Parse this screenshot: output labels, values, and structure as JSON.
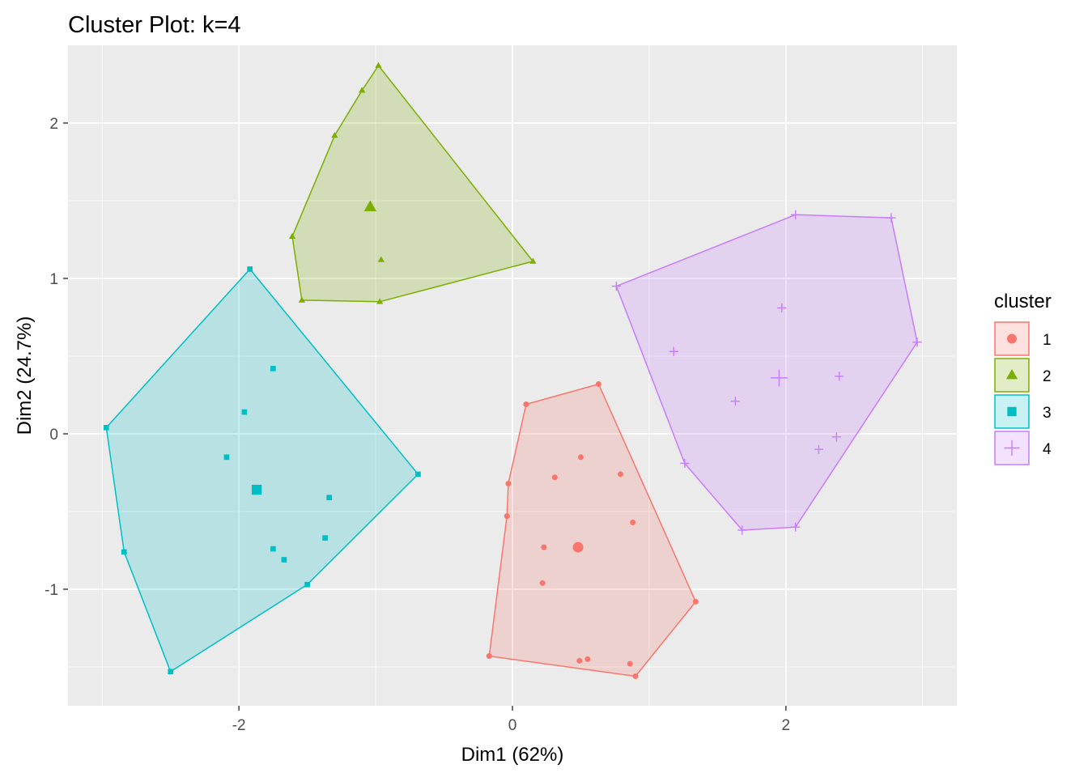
{
  "chart_data": {
    "type": "scatter",
    "title": "Cluster Plot: k=4",
    "xlabel": "Dim1 (62%)",
    "ylabel": "Dim2 (24.7%)",
    "xlim": [
      -3.25,
      3.25
    ],
    "ylim": [
      -1.75,
      2.5
    ],
    "x_ticks": [
      -2,
      0,
      2
    ],
    "y_ticks": [
      -1,
      0,
      1,
      2
    ],
    "x_tick_labels": [
      "-2",
      "0",
      "2"
    ],
    "y_tick_labels": [
      "-1",
      "0",
      "1",
      "2"
    ],
    "grid": true,
    "legend": {
      "title": "cluster",
      "position": "right"
    },
    "clusters": [
      {
        "name": "1",
        "color": "#F8766D",
        "shape": "circle",
        "center": [
          0.48,
          -0.73
        ],
        "hull": [
          [
            0.1,
            0.19
          ],
          [
            0.63,
            0.32
          ],
          [
            1.34,
            -1.08
          ],
          [
            0.9,
            -1.56
          ],
          [
            -0.17,
            -1.43
          ],
          [
            -0.04,
            -0.53
          ],
          [
            -0.03,
            -0.32
          ]
        ],
        "points": [
          [
            0.1,
            0.19
          ],
          [
            0.63,
            0.32
          ],
          [
            1.34,
            -1.08
          ],
          [
            0.9,
            -1.56
          ],
          [
            -0.17,
            -1.43
          ],
          [
            -0.04,
            -0.53
          ],
          [
            -0.03,
            -0.32
          ],
          [
            0.5,
            -0.15
          ],
          [
            0.79,
            -0.26
          ],
          [
            0.31,
            -0.28
          ],
          [
            0.88,
            -0.57
          ],
          [
            0.23,
            -0.73
          ],
          [
            0.22,
            -0.96
          ],
          [
            0.49,
            -1.46
          ],
          [
            0.55,
            -1.45
          ],
          [
            0.86,
            -1.48
          ]
        ]
      },
      {
        "name": "2",
        "color": "#7CAE00",
        "shape": "triangle",
        "center": [
          -1.04,
          1.46
        ],
        "hull": [
          [
            -0.98,
            2.37
          ],
          [
            0.15,
            1.11
          ],
          [
            -0.97,
            0.85
          ],
          [
            -1.54,
            0.86
          ],
          [
            -1.61,
            1.27
          ],
          [
            -1.3,
            1.92
          ],
          [
            -1.1,
            2.21
          ]
        ],
        "points": [
          [
            -0.98,
            2.37
          ],
          [
            0.15,
            1.11
          ],
          [
            -0.97,
            0.85
          ],
          [
            -1.54,
            0.86
          ],
          [
            -1.61,
            1.27
          ],
          [
            -1.3,
            1.92
          ],
          [
            -1.1,
            2.21
          ],
          [
            -0.96,
            1.12
          ]
        ]
      },
      {
        "name": "3",
        "color": "#00BFC4",
        "shape": "square",
        "center": [
          -1.87,
          -0.36
        ],
        "hull": [
          [
            -1.92,
            1.06
          ],
          [
            -0.69,
            -0.26
          ],
          [
            -1.5,
            -0.97
          ],
          [
            -2.5,
            -1.53
          ],
          [
            -2.84,
            -0.76
          ],
          [
            -2.97,
            0.04
          ]
        ],
        "points": [
          [
            -1.92,
            1.06
          ],
          [
            -0.69,
            -0.26
          ],
          [
            -1.5,
            -0.97
          ],
          [
            -2.5,
            -1.53
          ],
          [
            -2.84,
            -0.76
          ],
          [
            -2.97,
            0.04
          ],
          [
            -1.75,
            0.42
          ],
          [
            -1.96,
            0.14
          ],
          [
            -2.09,
            -0.15
          ],
          [
            -1.34,
            -0.41
          ],
          [
            -1.37,
            -0.67
          ],
          [
            -1.75,
            -0.74
          ],
          [
            -1.67,
            -0.81
          ]
        ]
      },
      {
        "name": "4",
        "color": "#C77CFF",
        "shape": "cross",
        "center": [
          1.95,
          0.36
        ],
        "hull": [
          [
            2.07,
            1.41
          ],
          [
            2.77,
            1.39
          ],
          [
            2.96,
            0.59
          ],
          [
            2.07,
            -0.6
          ],
          [
            1.68,
            -0.62
          ],
          [
            1.26,
            -0.19
          ],
          [
            0.76,
            0.95
          ]
        ],
        "points": [
          [
            2.07,
            1.41
          ],
          [
            2.77,
            1.39
          ],
          [
            2.96,
            0.59
          ],
          [
            2.07,
            -0.6
          ],
          [
            1.68,
            -0.62
          ],
          [
            1.26,
            -0.19
          ],
          [
            0.76,
            0.95
          ],
          [
            1.97,
            0.81
          ],
          [
            1.18,
            0.53
          ],
          [
            2.39,
            0.37
          ],
          [
            1.63,
            0.21
          ],
          [
            2.37,
            -0.02
          ],
          [
            2.24,
            -0.1
          ]
        ]
      }
    ]
  }
}
